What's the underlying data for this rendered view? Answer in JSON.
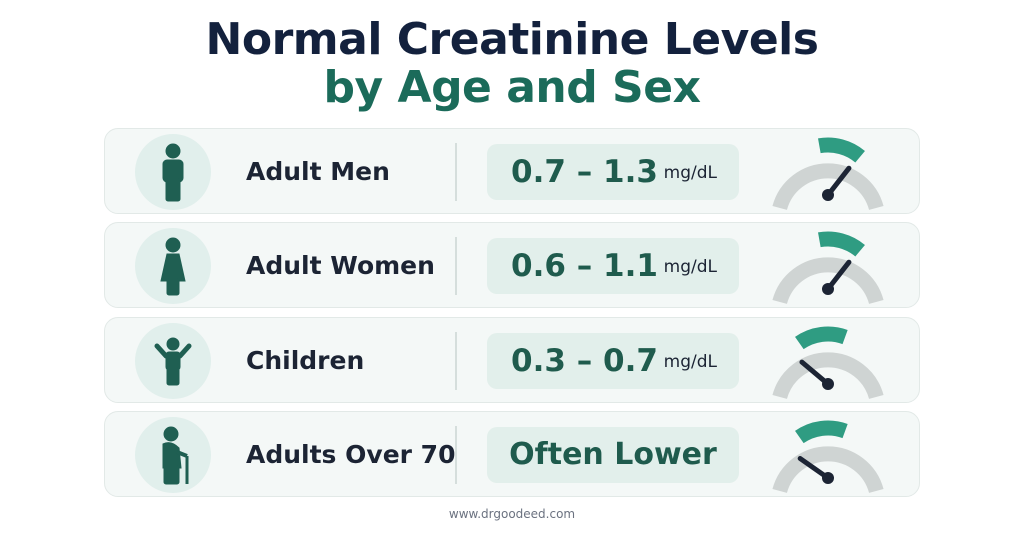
{
  "title": {
    "line1": "Normal Creatinine Levels",
    "line2": "by Age and Sex"
  },
  "rows": [
    {
      "group": "Adult Men",
      "range": "0.7 – 1.3",
      "unit": "mg/dL"
    },
    {
      "group": "Adult Women",
      "range": "0.6 – 1.1",
      "unit": "mg/dL"
    },
    {
      "group": "Children",
      "range": "0.3 – 0.7",
      "unit": "mg/dL"
    },
    {
      "group": "Adults Over 70",
      "note": "Often Lower"
    }
  ],
  "footer": "www.drgoodeed.com"
}
